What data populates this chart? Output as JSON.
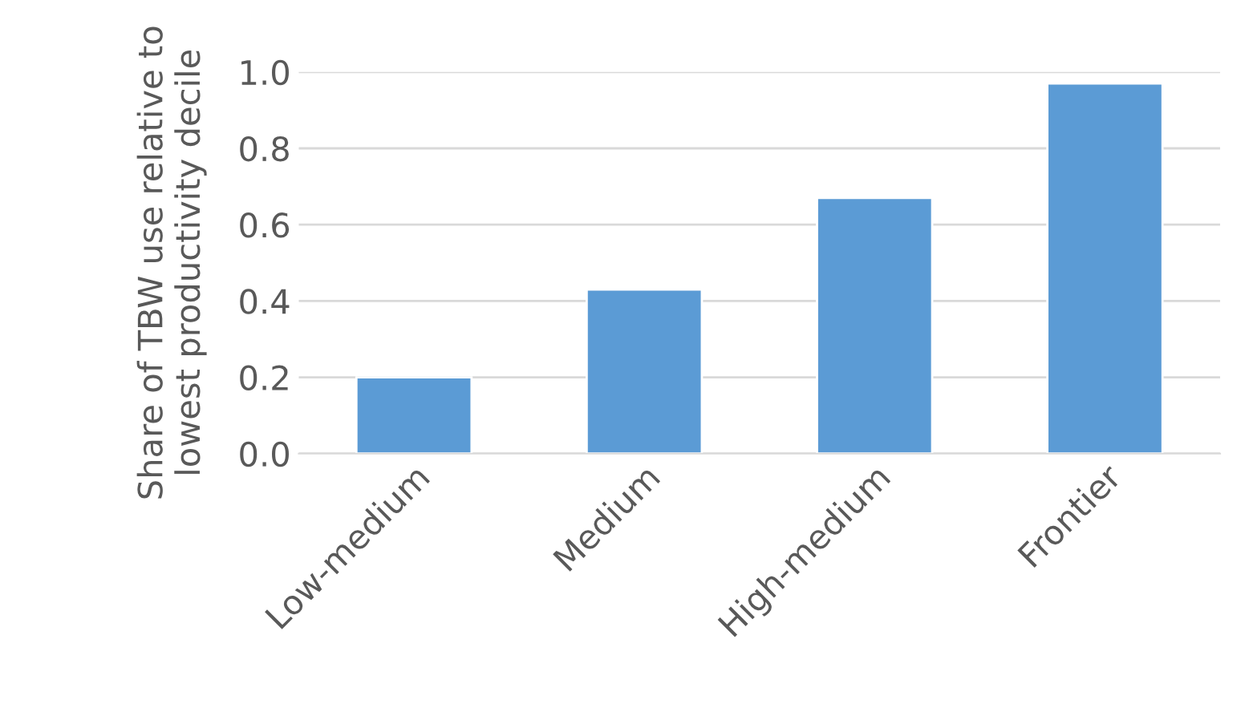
{
  "chart_data": {
    "type": "bar",
    "ylabel": "Share of TBW use relative to\nlowest productivity decile",
    "categories": [
      "Low-medium",
      "Medium",
      "High-medium",
      "Frontier"
    ],
    "values": [
      0.2,
      0.43,
      0.67,
      0.97
    ],
    "color": "#5b9bd5",
    "ylim": [
      0,
      1.0
    ],
    "yticks": [
      {
        "value": 0,
        "label": "0.0"
      },
      0.2,
      0.4,
      0.6,
      0.8,
      {
        "value": 1.0,
        "label": "1.0"
      }
    ],
    "grid": "y",
    "legend": false
  }
}
